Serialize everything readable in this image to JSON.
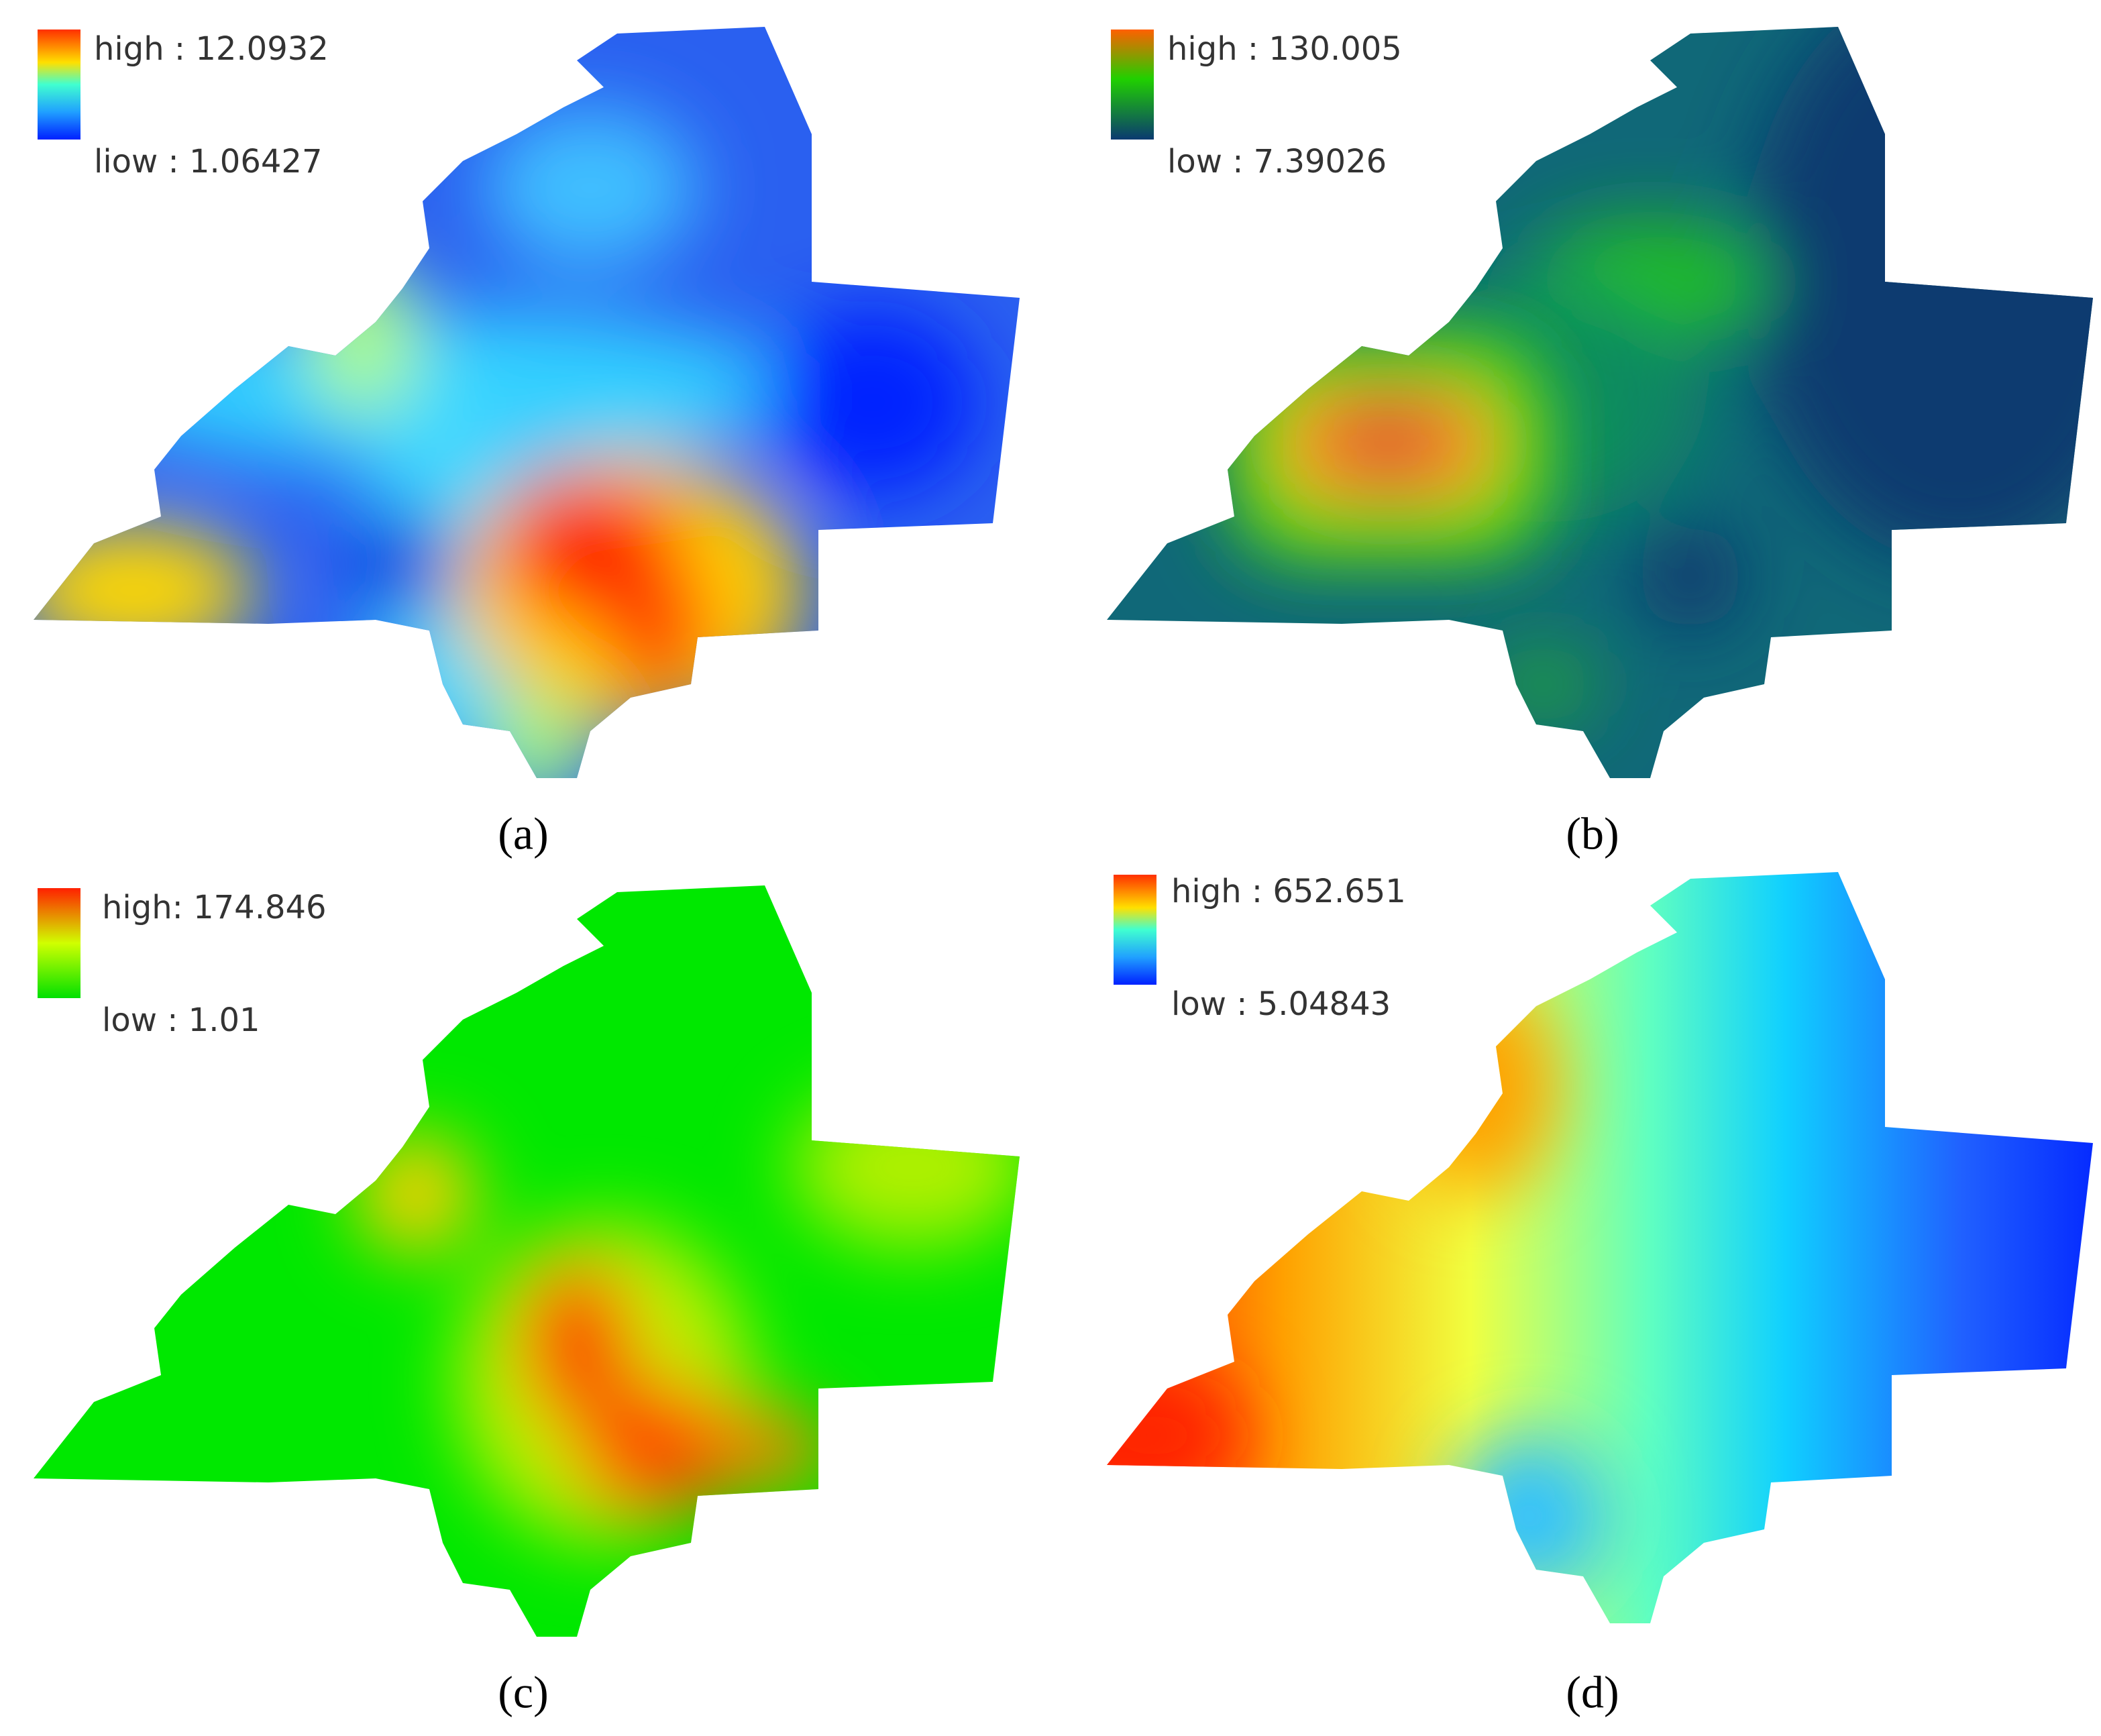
{
  "panels": [
    {
      "legend": {
        "high": "high : 12.0932",
        "low": "liow : 1.06427"
      },
      "caption": "(a)"
    },
    {
      "legend": {
        "high": "high : 130.005",
        "low": "low : 7.39026"
      },
      "caption": "(b)"
    },
    {
      "legend": {
        "high": "high: 174.846",
        "low": "low : 1.01"
      },
      "caption": "(c)"
    },
    {
      "legend": {
        "high": "high : 652.651",
        "low": "low : 5.04843"
      },
      "caption": "(d)"
    }
  ]
}
